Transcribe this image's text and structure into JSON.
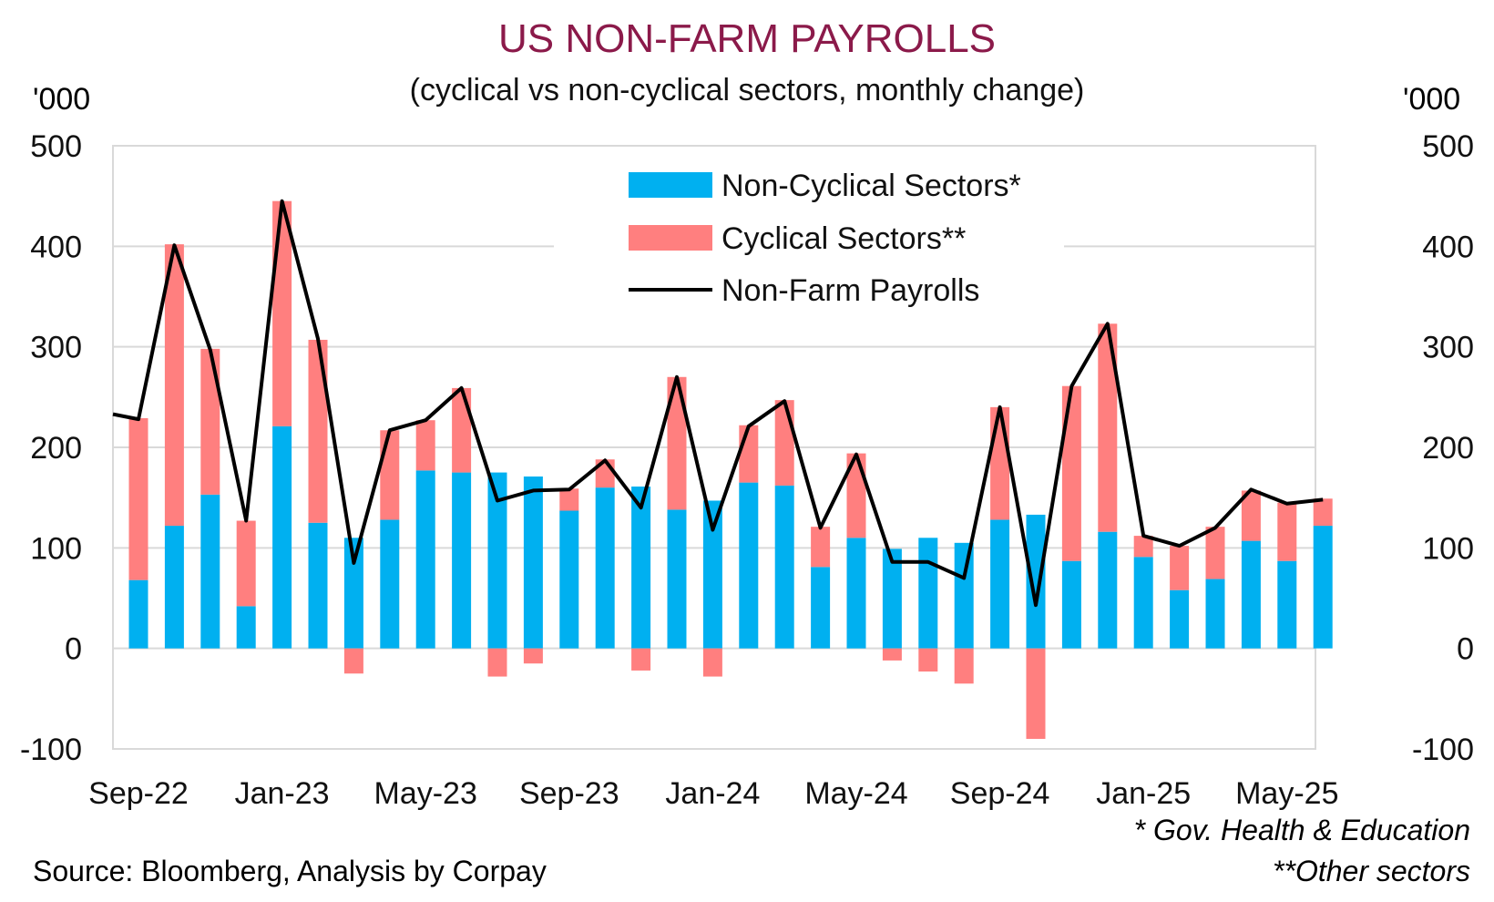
{
  "chart_data": {
    "type": "bar",
    "title": "US NON-FARM PAYROLLS",
    "subtitle": "(cyclical vs non-cyclical sectors, monthly change)",
    "y_unit_left": "'000",
    "y_unit_right": "'000",
    "ylim": [
      -100,
      500
    ],
    "yticks": [
      "500",
      "400",
      "300",
      "200",
      "100",
      "0",
      "-100"
    ],
    "ytick_values": [
      500,
      400,
      300,
      200,
      100,
      0,
      -100
    ],
    "xtick_labels": [
      "Sep-22",
      "Jan-23",
      "May-23",
      "Sep-23",
      "Jan-24",
      "May-24",
      "Sep-24",
      "Jan-25",
      "May-25"
    ],
    "xtick_indices": [
      0,
      4,
      8,
      12,
      16,
      20,
      24,
      28,
      32
    ],
    "categories": [
      "Sep-22",
      "Oct-22",
      "Nov-22",
      "Dec-22",
      "Jan-23",
      "Feb-23",
      "Mar-23",
      "Apr-23",
      "May-23",
      "Jun-23",
      "Jul-23",
      "Aug-23",
      "Sep-23",
      "Oct-23",
      "Nov-23",
      "Dec-23",
      "Jan-24",
      "Feb-24",
      "Mar-24",
      "Apr-24",
      "May-24",
      "Jun-24",
      "Jul-24",
      "Aug-24",
      "Sep-24",
      "Oct-24",
      "Nov-24",
      "Dec-24",
      "Jan-25",
      "Feb-25",
      "Mar-25",
      "Apr-25",
      "May-25",
      "Jun-25"
    ],
    "series": [
      {
        "name": "Non-Cyclical Sectors*",
        "kind": "bar",
        "color": "#00b0f0",
        "values": [
          68,
          122,
          153,
          42,
          221,
          125,
          110,
          128,
          177,
          175,
          175,
          171,
          137,
          160,
          161,
          138,
          147,
          165,
          162,
          81,
          110,
          99,
          110,
          105,
          128,
          133,
          87,
          116,
          91,
          58,
          69,
          107,
          87,
          122
        ]
      },
      {
        "name": "Cyclical Sectors**",
        "kind": "bar",
        "color": "#ff7f7f",
        "values": [
          161,
          280,
          145,
          85,
          224,
          182,
          -25,
          89,
          50,
          84,
          -28,
          -15,
          22,
          28,
          -22,
          132,
          -28,
          57,
          85,
          40,
          84,
          -12,
          -23,
          -35,
          112,
          -90,
          174,
          207,
          21,
          44,
          52,
          50,
          58,
          27
        ]
      },
      {
        "name": "Non-Farm Payrolls",
        "kind": "line",
        "color": "#000000",
        "first_value": 233,
        "values": [
          228,
          401,
          297,
          127,
          445,
          308,
          85,
          217,
          227,
          259,
          147,
          157,
          158,
          187,
          140,
          270,
          118,
          221,
          246,
          120,
          193,
          86,
          86,
          70,
          240,
          43,
          261,
          323,
          112,
          102,
          120,
          158,
          144,
          148
        ]
      }
    ],
    "legend": {
      "position": "top-center",
      "entries": [
        "Non-Cyclical Sectors*",
        "Cyclical Sectors**",
        "Non-Farm Payrolls"
      ]
    },
    "grid": true
  },
  "notes": {
    "note_1": "* Gov. Health & Education",
    "note_2": "**Other sectors",
    "source": "Source: Bloomberg, Analysis by Corpay"
  }
}
